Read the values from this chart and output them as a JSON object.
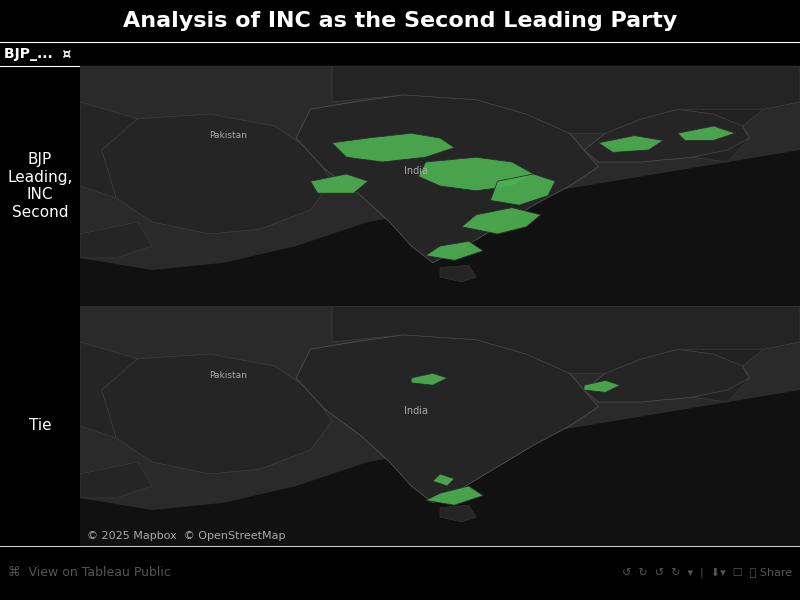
{
  "title": "Analysis of INC as the Second Leading Party",
  "title_color": "#ffffff",
  "title_bg": "#000000",
  "title_fontsize": 16,
  "header_bg": "#1a1a1a",
  "map_bg": "#1c1c1c",
  "panel_bg": "#000000",
  "border_color": "#555555",
  "label_header": "BJP_...  ¤",
  "row_labels": [
    "BJP\nLeading,\nINC\nSecond",
    "Tie"
  ],
  "label_color": "#ffffff",
  "label_fontsize": 11,
  "highlight_color": "#4caf50",
  "map_dark": "#2a2a2a",
  "map_darker": "#1a1a1a",
  "copyright_text": "© 2025 Mapbox  © OpenStreetMap",
  "copyright_color": "#aaaaaa",
  "copyright_fontsize": 8,
  "footer_bg": "#f0f0f0",
  "footer_text": "⌘  View on Tableau Public",
  "footer_color": "#666666",
  "footer_fontsize": 9,
  "figsize": [
    8.0,
    6.0
  ],
  "dpi": 100,
  "highlight_row1": [
    [
      [
        3.5,
        6.8
      ],
      [
        4.0,
        7.0
      ],
      [
        4.6,
        7.2
      ],
      [
        5.0,
        7.0
      ],
      [
        5.2,
        6.6
      ],
      [
        4.8,
        6.2
      ],
      [
        4.2,
        6.0
      ],
      [
        3.7,
        6.2
      ]
    ],
    [
      [
        4.8,
        6.0
      ],
      [
        5.5,
        6.2
      ],
      [
        6.0,
        6.0
      ],
      [
        6.3,
        5.5
      ],
      [
        6.0,
        5.0
      ],
      [
        5.5,
        4.8
      ],
      [
        5.0,
        5.0
      ],
      [
        4.7,
        5.4
      ]
    ],
    [
      [
        5.8,
        5.2
      ],
      [
        6.3,
        5.5
      ],
      [
        6.6,
        5.2
      ],
      [
        6.5,
        4.6
      ],
      [
        6.1,
        4.2
      ],
      [
        5.7,
        4.4
      ]
    ],
    [
      [
        5.5,
        3.8
      ],
      [
        6.0,
        4.1
      ],
      [
        6.4,
        3.8
      ],
      [
        6.2,
        3.3
      ],
      [
        5.8,
        3.0
      ],
      [
        5.3,
        3.3
      ]
    ],
    [
      [
        7.2,
        6.8
      ],
      [
        7.7,
        7.1
      ],
      [
        8.1,
        6.9
      ],
      [
        7.9,
        6.5
      ],
      [
        7.4,
        6.4
      ]
    ],
    [
      [
        8.3,
        7.2
      ],
      [
        8.8,
        7.5
      ],
      [
        9.1,
        7.2
      ],
      [
        8.8,
        6.9
      ],
      [
        8.4,
        6.9
      ]
    ],
    [
      [
        3.2,
        5.2
      ],
      [
        3.7,
        5.5
      ],
      [
        4.0,
        5.2
      ],
      [
        3.8,
        4.7
      ],
      [
        3.3,
        4.7
      ]
    ],
    [
      [
        5.0,
        2.5
      ],
      [
        5.4,
        2.7
      ],
      [
        5.6,
        2.3
      ],
      [
        5.2,
        1.9
      ],
      [
        4.8,
        2.1
      ]
    ]
  ],
  "highlight_row2": [
    [
      [
        4.6,
        7.0
      ],
      [
        4.9,
        7.2
      ],
      [
        5.1,
        7.0
      ],
      [
        4.9,
        6.7
      ],
      [
        4.6,
        6.8
      ]
    ],
    [
      [
        5.0,
        2.2
      ],
      [
        5.4,
        2.5
      ],
      [
        5.6,
        2.1
      ],
      [
        5.2,
        1.7
      ],
      [
        4.8,
        1.9
      ]
    ],
    [
      [
        7.0,
        6.7
      ],
      [
        7.3,
        6.9
      ],
      [
        7.5,
        6.7
      ],
      [
        7.3,
        6.4
      ],
      [
        7.0,
        6.5
      ]
    ],
    [
      [
        4.9,
        2.7
      ],
      [
        5.0,
        3.0
      ],
      [
        5.2,
        2.8
      ],
      [
        5.1,
        2.5
      ]
    ]
  ]
}
